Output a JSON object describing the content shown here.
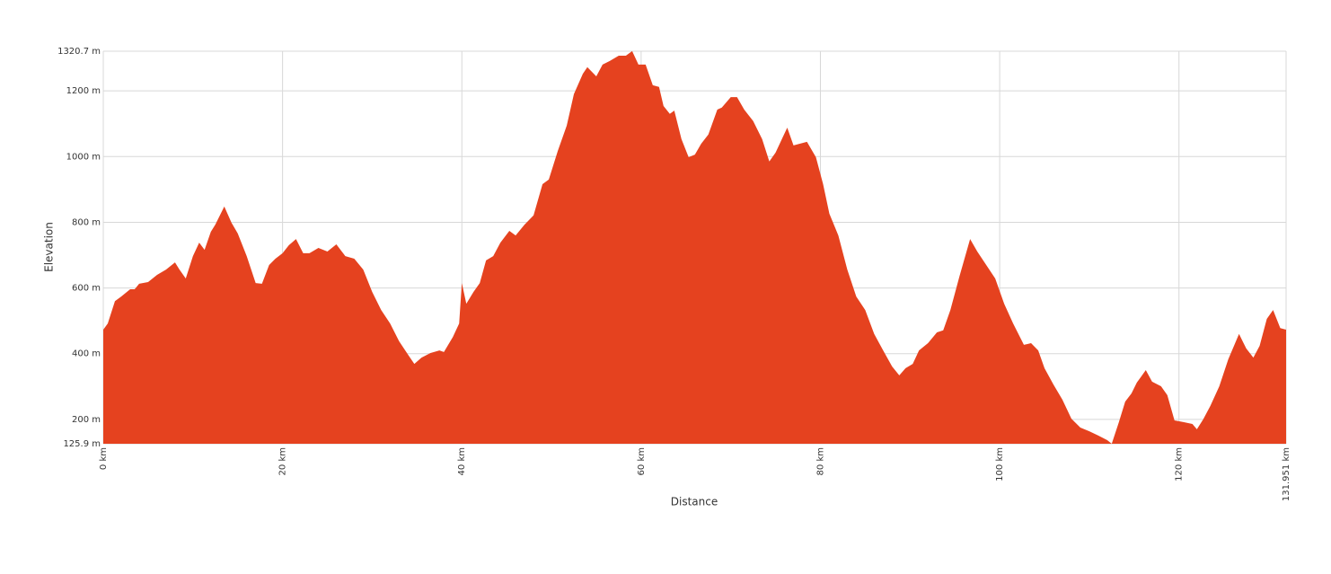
{
  "chart_data": {
    "type": "area",
    "x_label": "Distance",
    "y_label": "Elevation",
    "color": "#e5421f",
    "grid": true,
    "xlim": [
      0,
      131.951
    ],
    "ylim": [
      125.9,
      1320.7
    ],
    "xticks": [
      {
        "value": 0,
        "label": "0 km"
      },
      {
        "value": 20,
        "label": "20 km"
      },
      {
        "value": 40,
        "label": "40 km"
      },
      {
        "value": 60,
        "label": "60 km"
      },
      {
        "value": 80,
        "label": "80 km"
      },
      {
        "value": 100,
        "label": "100 km"
      },
      {
        "value": 120,
        "label": "120 km"
      },
      {
        "value": 131.951,
        "label": "131.951 km"
      }
    ],
    "yticks": [
      {
        "value": 125.9,
        "label": "125.9 m"
      },
      {
        "value": 200,
        "label": "200 m"
      },
      {
        "value": 400,
        "label": "400 m"
      },
      {
        "value": 600,
        "label": "600 m"
      },
      {
        "value": 800,
        "label": "800 m"
      },
      {
        "value": 1000,
        "label": "1000 m"
      },
      {
        "value": 1200,
        "label": "1200 m"
      },
      {
        "value": 1320.7,
        "label": "1320.7 m"
      }
    ],
    "x": [
      0,
      0.5,
      1.3,
      2,
      3,
      3.5,
      4,
      5,
      6,
      7,
      8,
      8.5,
      9.2,
      10,
      10.7,
      11.3,
      12,
      12.5,
      13.5,
      14.3,
      15,
      16,
      17,
      17.7,
      18.5,
      19.2,
      20,
      20.7,
      21.5,
      22.3,
      23,
      24,
      25,
      26,
      27,
      28,
      29,
      30,
      31,
      32,
      33,
      34,
      34.7,
      35.5,
      36.5,
      37.5,
      38,
      39,
      39.7,
      40,
      40.5,
      41.3,
      42,
      42.7,
      43.5,
      44.3,
      45.3,
      46,
      47,
      48,
      49,
      49.7,
      50.7,
      51.7,
      52.5,
      53.5,
      54,
      55,
      55.7,
      56.5,
      57.5,
      58.3,
      59,
      59.7,
      60.5,
      61.3,
      62,
      62.5,
      63.2,
      63.7,
      64.5,
      65.3,
      66,
      66.7,
      67.5,
      68.5,
      69,
      70,
      70.7,
      71.5,
      72.5,
      73.5,
      74.3,
      75,
      75.7,
      76.3,
      77,
      77.7,
      78.5,
      79.5,
      80.3,
      81,
      82,
      83,
      84,
      85,
      86,
      87,
      88,
      88.8,
      89.5,
      90.3,
      91,
      92,
      93,
      93.7,
      94.5,
      95.5,
      96.7,
      97.5,
      98.5,
      99.5,
      100.5,
      101.5,
      102.7,
      103.5,
      104.3,
      105,
      106,
      107,
      108,
      109,
      110,
      111,
      112,
      112.5,
      113.3,
      114,
      114.7,
      115.3,
      116.3,
      117,
      118,
      118.7,
      119.5,
      120.5,
      121.5,
      122,
      122.7,
      123.5,
      124.5,
      125.5,
      126.7,
      127.5,
      128.3,
      129,
      129.8,
      130.5,
      131.3,
      131.951
    ],
    "values": [
      473,
      492,
      560,
      574,
      596,
      596,
      613,
      618,
      640,
      656,
      678,
      656,
      629,
      697,
      738,
      716,
      771,
      793,
      848,
      799,
      766,
      697,
      615,
      613,
      670,
      689,
      706,
      730,
      749,
      706,
      706,
      722,
      711,
      733,
      697,
      689,
      656,
      588,
      533,
      492,
      438,
      397,
      369,
      388,
      402,
      410,
      405,
      451,
      492,
      615,
      552,
      588,
      615,
      684,
      697,
      738,
      774,
      760,
      793,
      821,
      916,
      930,
      1017,
      1094,
      1190,
      1252,
      1272,
      1244,
      1280,
      1291,
      1307,
      1307,
      1321,
      1280,
      1280,
      1217,
      1212,
      1154,
      1130,
      1140,
      1053,
      998,
      1006,
      1039,
      1067,
      1143,
      1149,
      1181,
      1181,
      1143,
      1108,
      1053,
      985,
      1012,
      1053,
      1088,
      1034,
      1039,
      1045,
      998,
      916,
      826,
      760,
      656,
      574,
      533,
      460,
      410,
      361,
      334,
      356,
      369,
      410,
      432,
      465,
      471,
      533,
      634,
      749,
      711,
      670,
      629,
      552,
      492,
      427,
      432,
      410,
      356,
      306,
      260,
      202,
      175,
      164,
      151,
      137,
      126,
      192,
      254,
      279,
      312,
      350,
      315,
      301,
      274,
      197,
      192,
      186,
      170,
      200,
      241,
      301,
      383,
      460,
      416,
      388,
      424,
      506,
      533,
      478,
      473
    ]
  }
}
